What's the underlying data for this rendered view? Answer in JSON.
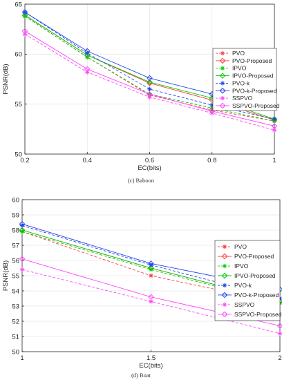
{
  "legend_entries": [
    "PVO",
    "PVO-Proposed",
    "IPVO",
    "IPVO-Proposed",
    "PVO-k",
    "PVO-k-Proposed",
    "SSPVO",
    "SSPVO-Proposed"
  ],
  "chart_data": [
    {
      "type": "line",
      "caption": "(c)   Baboon",
      "xlabel": "EC(bits)",
      "ylabel": "PSNR(dB)",
      "xlim": [
        0.2,
        1
      ],
      "ylim": [
        50,
        65
      ],
      "grid": true,
      "legend_position": "right",
      "x": [
        0.2,
        0.4,
        0.6,
        0.8,
        1
      ],
      "x_ticks": [
        "0.2",
        "0.4",
        "0.6",
        "0.8",
        "1"
      ],
      "y_ticks": [
        "50",
        "55",
        "60",
        "65"
      ],
      "series": [
        {
          "name": "PVO",
          "color": "#ff3b3b",
          "dashed": true,
          "marker": "star",
          "values": [
            63.8,
            59.7,
            55.9,
            54.4,
            53.3
          ]
        },
        {
          "name": "PVO-Proposed",
          "color": "#ff3b3b",
          "dashed": false,
          "marker": "diamond",
          "values": [
            63.9,
            59.9,
            57.1,
            55.4,
            53.4
          ]
        },
        {
          "name": "IPVO",
          "color": "#00cc00",
          "dashed": true,
          "marker": "star",
          "values": [
            63.8,
            59.7,
            56.0,
            54.6,
            53.3
          ]
        },
        {
          "name": "IPVO-Proposed",
          "color": "#00cc00",
          "dashed": false,
          "marker": "diamond",
          "values": [
            63.9,
            59.9,
            57.2,
            55.6,
            53.5
          ]
        },
        {
          "name": "PVO-k",
          "color": "#2244ee",
          "dashed": true,
          "marker": "star",
          "values": [
            64.2,
            60.1,
            56.5,
            54.9,
            53.5
          ]
        },
        {
          "name": "PVO-k-Proposed",
          "color": "#2244ee",
          "dashed": false,
          "marker": "diamond",
          "values": [
            64.2,
            60.3,
            57.6,
            56.0,
            54.7
          ]
        },
        {
          "name": "SSPVO",
          "color": "#ff44ff",
          "dashed": true,
          "marker": "star",
          "values": [
            62.0,
            58.2,
            55.7,
            54.1,
            52.4
          ]
        },
        {
          "name": "SSPVO-Proposed",
          "color": "#ff44ff",
          "dashed": false,
          "marker": "diamond",
          "values": [
            62.3,
            58.5,
            56.0,
            54.3,
            52.8
          ]
        }
      ]
    },
    {
      "type": "line",
      "caption": "(d)   Boat",
      "xlabel": "EC(bits)",
      "ylabel": "PSNR(dB)",
      "xlim": [
        1,
        2
      ],
      "ylim": [
        50,
        60
      ],
      "grid": true,
      "legend_position": "right",
      "x": [
        1,
        1.5,
        2
      ],
      "x_ticks": [
        "1",
        "1.5",
        "2"
      ],
      "y_ticks": [
        "50",
        "51",
        "52",
        "53",
        "54",
        "55",
        "56",
        "57",
        "58",
        "59",
        "60"
      ],
      "series": [
        {
          "name": "PVO",
          "color": "#ff3b3b",
          "dashed": true,
          "marker": "star",
          "values": [
            57.9,
            55.0,
            53.2
          ]
        },
        {
          "name": "PVO-Proposed",
          "color": "#ff3b3b",
          "dashed": false,
          "marker": "diamond",
          "values": [
            58.0,
            55.5,
            53.3
          ]
        },
        {
          "name": "IPVO",
          "color": "#00cc00",
          "dashed": true,
          "marker": "star",
          "values": [
            57.9,
            55.4,
            53.2
          ]
        },
        {
          "name": "IPVO-Proposed",
          "color": "#00cc00",
          "dashed": false,
          "marker": "diamond",
          "values": [
            58.0,
            55.5,
            53.3
          ]
        },
        {
          "name": "PVO-k",
          "color": "#2244ee",
          "dashed": true,
          "marker": "star",
          "values": [
            58.3,
            55.7,
            53.5
          ]
        },
        {
          "name": "PVO-k-Proposed",
          "color": "#2244ee",
          "dashed": false,
          "marker": "diamond",
          "values": [
            58.4,
            55.8,
            54.1
          ]
        },
        {
          "name": "SSPVO",
          "color": "#ff44ff",
          "dashed": true,
          "marker": "star",
          "values": [
            55.4,
            53.3,
            51.2
          ]
        },
        {
          "name": "SSPVO-Proposed",
          "color": "#ff44ff",
          "dashed": false,
          "marker": "diamond",
          "values": [
            56.1,
            53.6,
            51.7
          ]
        }
      ]
    }
  ]
}
